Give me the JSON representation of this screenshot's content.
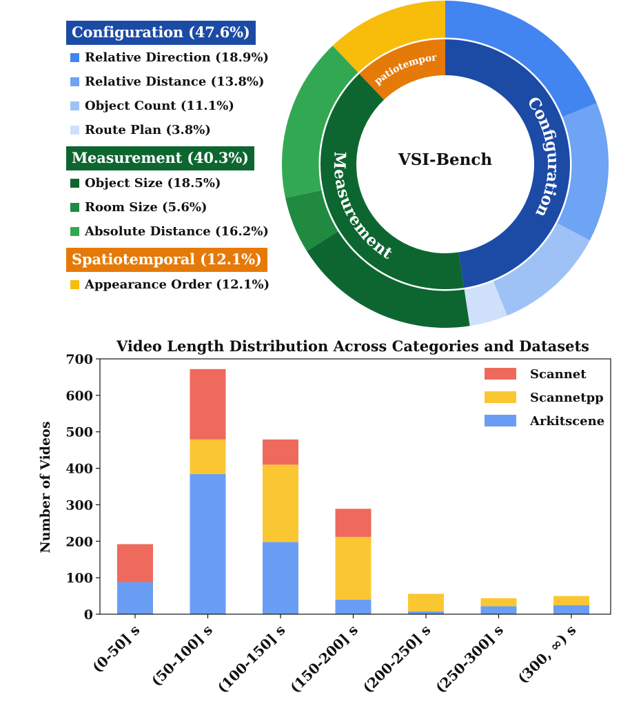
{
  "chart_data": [
    {
      "type": "pie",
      "variant": "nested-donut",
      "center_label": "VSI-Bench",
      "categories": [
        {
          "name": "Configuration",
          "header": "Configuration (47.6%)",
          "value": 47.6,
          "color": "#1c4ba6",
          "subcategories": [
            {
              "label": "Relative Direction (18.9%)",
              "value": 18.9,
              "color": "#4285f0"
            },
            {
              "label": "Relative Distance (13.8%)",
              "value": 13.8,
              "color": "#6fa3f3"
            },
            {
              "label": "Object Count (11.1%)",
              "value": 11.1,
              "color": "#9ec2f6"
            },
            {
              "label": "Route Plan (3.8%)",
              "value": 3.8,
              "color": "#cfe0fb"
            }
          ]
        },
        {
          "name": "Measurement",
          "header": "Measurement (40.3%)",
          "value": 40.3,
          "color": "#0d6630",
          "subcategories": [
            {
              "label": "Object Size (18.5%)",
              "value": 18.5,
              "color": "#0d6630"
            },
            {
              "label": "Room Size (5.6%)",
              "value": 5.6,
              "color": "#208a41"
            },
            {
              "label": "Absolute Distance (16.2%)",
              "value": 16.2,
              "color": "#33a852"
            }
          ]
        },
        {
          "name": "Spatiotemporal",
          "header": "Spatiotemporal (12.1%)",
          "value": 12.1,
          "color": "#e57a09",
          "subcategories": [
            {
              "label": "Appearance Order (12.1%)",
              "value": 12.1,
              "color": "#f8bc0b"
            }
          ]
        }
      ]
    },
    {
      "type": "bar",
      "stacked": true,
      "title": "Video Length Distribution Across Categories and Datasets",
      "xlabel": "",
      "ylabel": "Number of Videos",
      "ylim": [
        0,
        700
      ],
      "yticks": [
        0,
        100,
        200,
        300,
        400,
        500,
        600,
        700
      ],
      "categories": [
        "(0-50] s",
        "(50-100] s",
        "(100-150] s",
        "(150-200] s",
        "(200-250] s",
        "(250-300] s",
        "(300, ∞) s"
      ],
      "series": [
        {
          "name": "Arkitscene",
          "color": "#6a9ef4",
          "values": [
            88,
            384,
            198,
            40,
            8,
            22,
            25
          ]
        },
        {
          "name": "Scannetpp",
          "color": "#fac733",
          "values": [
            0,
            95,
            212,
            172,
            48,
            22,
            25
          ]
        },
        {
          "name": "Scannet",
          "color": "#ee6a5c",
          "values": [
            104,
            193,
            69,
            77,
            0,
            0,
            0
          ]
        }
      ],
      "legend": {
        "placement": "top-right",
        "order": [
          "Scannet",
          "Scannetpp",
          "Arkitscene"
        ]
      }
    }
  ]
}
